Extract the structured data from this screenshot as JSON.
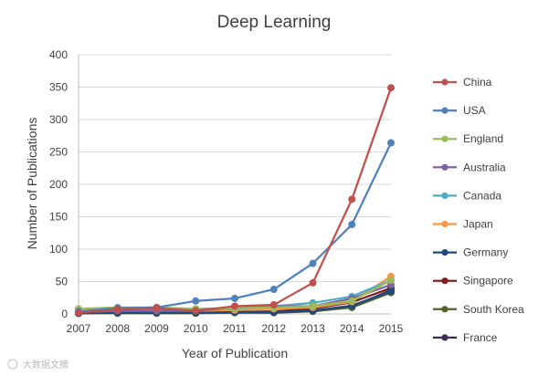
{
  "watermark": "大数据文摘",
  "chart_data": {
    "type": "line",
    "title": "Deep Learning",
    "xlabel": "Year of Publication",
    "ylabel": "Number of Publications",
    "x": [
      2007,
      2008,
      2009,
      2010,
      2011,
      2012,
      2013,
      2014,
      2015
    ],
    "ylim": [
      0,
      400
    ],
    "yticks": [
      0,
      50,
      100,
      150,
      200,
      250,
      300,
      350,
      400
    ],
    "grid": "horizontal",
    "legend": "right",
    "series": [
      {
        "name": "China",
        "color": "#c0504d",
        "values": [
          2,
          7,
          9,
          5,
          12,
          14,
          48,
          177,
          349
        ]
      },
      {
        "name": "USA",
        "color": "#4f81bd",
        "values": [
          4,
          9,
          10,
          20,
          24,
          38,
          78,
          138,
          264
        ]
      },
      {
        "name": "England",
        "color": "#9bbb59",
        "values": [
          8,
          10,
          10,
          8,
          9,
          10,
          12,
          20,
          52
        ]
      },
      {
        "name": "Australia",
        "color": "#8064a2",
        "values": [
          3,
          5,
          5,
          5,
          10,
          12,
          12,
          24,
          45
        ]
      },
      {
        "name": "Canada",
        "color": "#4bacc6",
        "values": [
          4,
          6,
          6,
          6,
          8,
          12,
          17,
          27,
          52
        ]
      },
      {
        "name": "Japan",
        "color": "#f79646",
        "values": [
          3,
          5,
          5,
          5,
          6,
          8,
          10,
          19,
          58
        ]
      },
      {
        "name": "Germany",
        "color": "#1f497d",
        "values": [
          1,
          2,
          2,
          2,
          3,
          3,
          5,
          13,
          35
        ]
      },
      {
        "name": "Singapore",
        "color": "#7f1f1f",
        "values": [
          1,
          2,
          2,
          2,
          3,
          4,
          8,
          18,
          40
        ]
      },
      {
        "name": "South Korea",
        "color": "#4f6228",
        "values": [
          1,
          1,
          1,
          1,
          2,
          3,
          4,
          10,
          33
        ]
      },
      {
        "name": "France",
        "color": "#3f2d55",
        "values": [
          1,
          2,
          2,
          2,
          2,
          2,
          4,
          11,
          37
        ]
      }
    ]
  }
}
